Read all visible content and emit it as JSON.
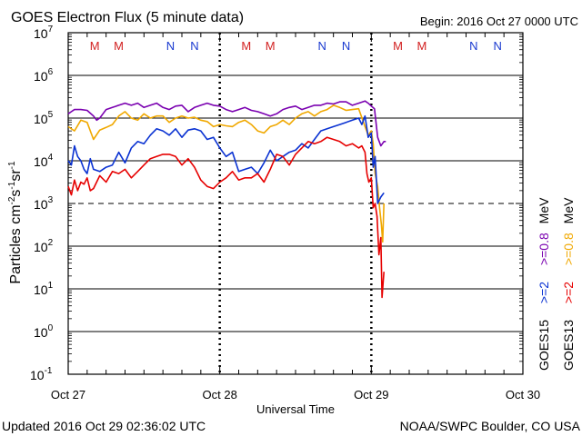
{
  "colors": {
    "goes15_08": "#7a00b0",
    "goes13_08": "#f0a800",
    "goes15_2": "#0a32d2",
    "goes13_2": "#e60000",
    "flag_M": "#d22020",
    "flag_N": "#1a3ad0"
  },
  "chart_data": {
    "type": "line",
    "title": "GOES Electron Flux (5 minute data)",
    "begin_label": "Begin: 2016 Oct 27 0000 UTC",
    "xlabel": "Universal Time",
    "ylabel": {
      "base": "Particles cm",
      "e1": "-2",
      "s": "s",
      "e2": "-1",
      "sr": "sr",
      "e3": "-1"
    },
    "updated": "Updated 2016 Oct 29 02:36:02 UTC",
    "credit": "NOAA/SWPC Boulder, CO USA",
    "x_unit": "hours since 2016 Oct 27 00:00 UTC",
    "xlim": [
      0,
      72
    ],
    "x_ticks": [
      {
        "x": 0,
        "label": "Oct 27"
      },
      {
        "x": 24,
        "label": "Oct 28"
      },
      {
        "x": 48,
        "label": "Oct 29"
      },
      {
        "x": 72,
        "label": "Oct 30"
      }
    ],
    "y_scale": "log",
    "ylim_exp": [
      -1,
      7
    ],
    "y_ticks": [
      {
        "exp": 7,
        "label": "10",
        "sup": "7"
      },
      {
        "exp": 6,
        "label": "10",
        "sup": "6"
      },
      {
        "exp": 5,
        "label": "10",
        "sup": "5"
      },
      {
        "exp": 4,
        "label": "10",
        "sup": "4"
      },
      {
        "exp": 3,
        "label": "10",
        "sup": "3"
      },
      {
        "exp": 2,
        "label": "10",
        "sup": "2"
      },
      {
        "exp": 1,
        "label": "10",
        "sup": "1"
      },
      {
        "exp": 0,
        "label": "10",
        "sup": "0"
      },
      {
        "exp": -1,
        "label": "10",
        "sup": "-1"
      }
    ],
    "solid_grid_exp": [
      6,
      5,
      4,
      2,
      1,
      0
    ],
    "dashed_grid_exp": [
      3
    ],
    "flags": [
      {
        "x": 4.2,
        "label": "M",
        "kind": "M"
      },
      {
        "x": 8.0,
        "label": "M",
        "kind": "M"
      },
      {
        "x": 16.2,
        "label": "N",
        "kind": "N"
      },
      {
        "x": 20.0,
        "label": "N",
        "kind": "N"
      },
      {
        "x": 28.2,
        "label": "M",
        "kind": "M"
      },
      {
        "x": 32.0,
        "label": "M",
        "kind": "M"
      },
      {
        "x": 40.2,
        "label": "N",
        "kind": "N"
      },
      {
        "x": 44.0,
        "label": "N",
        "kind": "N"
      },
      {
        "x": 52.2,
        "label": "M",
        "kind": "M"
      },
      {
        "x": 56.0,
        "label": "M",
        "kind": "M"
      },
      {
        "x": 64.2,
        "label": "N",
        "kind": "N"
      },
      {
        "x": 68.0,
        "label": "N",
        "kind": "N"
      }
    ],
    "legend": {
      "col1": {
        "sat": "GOES15",
        "hi": ">=2",
        "lo": ">=0.8",
        "unit": "MeV"
      },
      "col2": {
        "sat": "GOES13",
        "hi": ">=2",
        "lo": ">=0.8",
        "unit": "MeV"
      }
    },
    "series": [
      {
        "name": "GOES15 >=0.8 MeV",
        "color_key": "goes15_08",
        "x": [
          0,
          0.5,
          1,
          2,
          3,
          4,
          4.5,
          5,
          5.5,
          6,
          7,
          8,
          9,
          10,
          11,
          12,
          13,
          14,
          15,
          16,
          17,
          18,
          19,
          20,
          21,
          22,
          23,
          24,
          25,
          26,
          27,
          28,
          29,
          30,
          31,
          32,
          33,
          34,
          35,
          36,
          37,
          38,
          39,
          40,
          41,
          42,
          43,
          44,
          45,
          46,
          47,
          47.5,
          48,
          48.5,
          49,
          49.5,
          50,
          50.3
        ],
        "y": [
          5.1,
          5.15,
          5.2,
          5.2,
          5.18,
          5.05,
          4.95,
          5.0,
          5.1,
          5.2,
          5.25,
          5.3,
          5.35,
          5.3,
          5.35,
          5.25,
          5.3,
          5.35,
          5.25,
          5.2,
          5.28,
          5.3,
          5.15,
          5.25,
          5.3,
          5.35,
          5.3,
          5.28,
          5.2,
          5.15,
          5.2,
          5.25,
          5.18,
          5.15,
          5.1,
          5.05,
          5.1,
          5.2,
          5.25,
          5.28,
          5.2,
          5.25,
          5.3,
          5.3,
          5.35,
          5.33,
          5.38,
          5.38,
          5.3,
          5.35,
          5.4,
          5.35,
          5.28,
          5.22,
          4.55,
          4.35,
          4.45,
          4.45
        ]
      },
      {
        "name": "GOES13 >=0.8 MeV",
        "color_key": "goes13_08",
        "x": [
          0,
          1,
          2,
          3,
          4,
          5,
          6,
          7,
          8,
          9,
          10,
          11,
          12,
          13,
          14,
          15,
          16,
          17,
          18,
          19,
          20,
          21,
          22,
          23,
          24,
          25,
          26,
          27,
          28,
          29,
          30,
          31,
          32,
          33,
          34,
          35,
          36,
          37,
          38,
          39,
          40,
          41,
          42,
          43,
          44,
          45,
          46,
          47,
          47.5,
          48,
          48.3,
          48.6,
          49,
          49.3,
          49.6,
          49.8,
          50
        ],
        "y": [
          4.8,
          4.7,
          4.95,
          4.9,
          4.5,
          4.72,
          4.78,
          4.85,
          5.05,
          5.15,
          5.0,
          4.95,
          5.1,
          5.0,
          5.05,
          5.05,
          4.9,
          5.0,
          5.05,
          5.0,
          5.02,
          4.95,
          4.92,
          4.8,
          4.85,
          4.82,
          4.8,
          4.9,
          4.95,
          4.85,
          4.7,
          4.65,
          4.8,
          4.85,
          4.95,
          4.85,
          5.0,
          5.1,
          5.15,
          5.05,
          5.15,
          5.2,
          5.3,
          5.25,
          5.18,
          5.2,
          5.22,
          4.8,
          4.6,
          4.7,
          4.4,
          3.7,
          3.4,
          2.9,
          2.5,
          2.1,
          3.0
        ]
      },
      {
        "name": "GOES15 >=2 MeV",
        "color_key": "goes15_2",
        "x": [
          0,
          0.5,
          1,
          1.5,
          2,
          2.5,
          3,
          3.5,
          4,
          5,
          6,
          7,
          8,
          9,
          10,
          11,
          12,
          13,
          14,
          15,
          16,
          17,
          18,
          19,
          20,
          21,
          22,
          23,
          24,
          25,
          26,
          27,
          28,
          29,
          30,
          31,
          32,
          33,
          34,
          35,
          36,
          37,
          38,
          39,
          40,
          41,
          42,
          43,
          44,
          45,
          46,
          46.5,
          47,
          47.5,
          48,
          48.3,
          48.6,
          49,
          49.5,
          50
        ],
        "y": [
          4.0,
          3.9,
          4.35,
          4.1,
          4.0,
          3.8,
          3.7,
          4.05,
          3.8,
          3.75,
          3.85,
          3.9,
          4.2,
          3.95,
          4.3,
          4.45,
          4.4,
          4.6,
          4.75,
          4.7,
          4.6,
          4.75,
          4.55,
          4.72,
          4.75,
          4.7,
          4.5,
          4.55,
          4.3,
          4.1,
          4.2,
          3.75,
          3.8,
          3.85,
          3.7,
          3.95,
          4.25,
          4.0,
          4.1,
          4.2,
          4.25,
          4.4,
          4.3,
          4.5,
          4.7,
          4.75,
          4.8,
          4.85,
          4.9,
          4.95,
          5.0,
          4.85,
          5.05,
          4.55,
          4.65,
          3.85,
          4.1,
          3.0,
          3.15,
          3.25
        ]
      },
      {
        "name": "GOES13 >=2 MeV",
        "color_key": "goes13_2",
        "x": [
          0,
          0.5,
          1,
          1.5,
          2,
          2.5,
          3,
          3.5,
          4,
          5,
          6,
          7,
          8,
          9,
          10,
          11,
          12,
          13,
          14,
          15,
          16,
          17,
          18,
          19,
          20,
          21,
          22,
          23,
          24,
          25,
          26,
          27,
          28,
          29,
          30,
          31,
          32,
          33,
          34,
          35,
          36,
          37,
          38,
          39,
          40,
          41,
          42,
          43,
          44,
          45,
          46,
          46.5,
          47,
          47.3,
          47.6,
          48,
          48.3,
          48.6,
          48.9,
          49.2,
          49.5,
          49.7,
          50
        ],
        "y": [
          3.4,
          3.2,
          3.55,
          3.3,
          3.5,
          3.45,
          3.6,
          3.3,
          3.35,
          3.65,
          3.5,
          3.75,
          3.7,
          3.8,
          3.6,
          3.75,
          3.9,
          4.05,
          4.1,
          4.15,
          4.15,
          4.1,
          3.9,
          4.05,
          3.85,
          3.55,
          3.4,
          3.35,
          3.5,
          3.6,
          3.75,
          3.55,
          3.6,
          3.6,
          3.7,
          3.5,
          3.8,
          4.15,
          4.1,
          3.9,
          4.15,
          4.3,
          4.45,
          4.4,
          4.45,
          4.55,
          4.5,
          4.45,
          4.35,
          4.4,
          4.3,
          4.35,
          4.2,
          3.7,
          3.5,
          3.6,
          2.9,
          3.0,
          2.7,
          1.8,
          2.2,
          0.8,
          1.4
        ]
      }
    ]
  }
}
